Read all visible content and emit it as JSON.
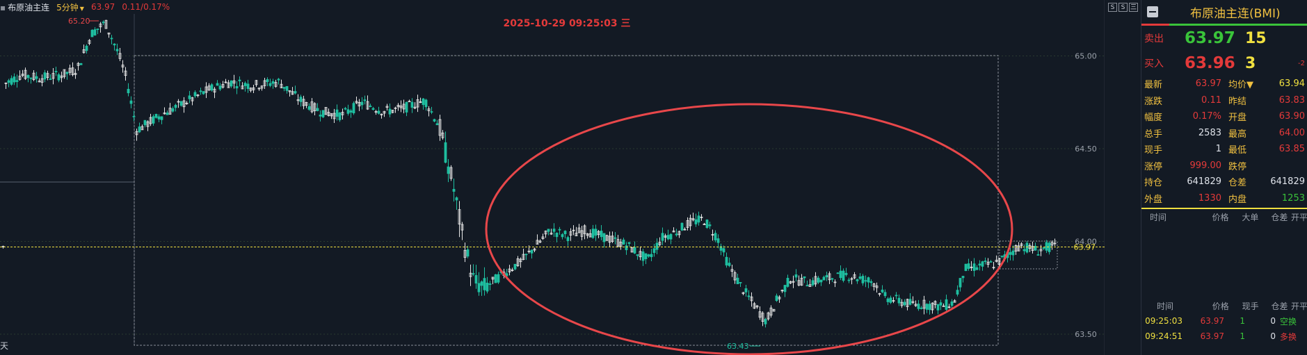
{
  "header": {
    "instrument": "布原油主连",
    "period": "5分钟",
    "price": "63.97",
    "change": "0.11/0.17%"
  },
  "chart": {
    "datetime_label": "2025-10-29 09:25:03 三",
    "y_ticks": [
      "65.00",
      "64.50",
      "64.00",
      "63.50"
    ],
    "current_price_label": "63.97",
    "high_label": "65.20",
    "low_label": "63.43",
    "left_label": "天",
    "colors": {
      "up": "#e8e8e8",
      "down": "#1fbfa0",
      "current_line": "#f0e040",
      "annotation": "#e8474a"
    }
  },
  "window_buttons": [
    "S",
    "S",
    "三"
  ],
  "panel": {
    "title": "布原油主连(BMI)",
    "sell": {
      "label": "卖出",
      "price": "63.97",
      "volume": "15"
    },
    "buy": {
      "label": "买入",
      "price": "63.96",
      "volume": "3",
      "diff": "-2"
    },
    "stats": [
      {
        "l1": "最新",
        "v1": "63.97",
        "c1": "red",
        "l2": "均价▼",
        "v2": "63.94",
        "c2": "yellow"
      },
      {
        "l1": "涨跌",
        "v1": "0.11",
        "c1": "red",
        "l2": "昨结",
        "v2": "63.83",
        "c2": "red"
      },
      {
        "l1": "幅度",
        "v1": "0.17%",
        "c1": "red",
        "l2": "开盘",
        "v2": "63.90",
        "c2": "red"
      },
      {
        "l1": "总手",
        "v1": "2583",
        "c1": "white",
        "l2": "最高",
        "v2": "64.00",
        "c2": "red"
      },
      {
        "l1": "现手",
        "v1": "1",
        "c1": "white",
        "l2": "最低",
        "v2": "63.85",
        "c2": "red"
      },
      {
        "l1": "涨停",
        "v1": "999.00",
        "c1": "red",
        "l2": "跌停",
        "v2": "",
        "c2": "green"
      },
      {
        "l1": "持仓",
        "v1": "641829",
        "c1": "white",
        "l2": "仓差",
        "v2": "641829",
        "c2": "white"
      },
      {
        "l1": "外盘",
        "v1": "1330",
        "c1": "red",
        "l2": "内盘",
        "v2": "1253",
        "c2": "green"
      }
    ],
    "big_table_headers": [
      "时间",
      "价格",
      "大单",
      "仓差",
      "开平"
    ],
    "tick_table_headers": [
      "时间",
      "价格",
      "现手",
      "仓差",
      "开平"
    ],
    "ticks": [
      {
        "time": "09:25:03",
        "price": "63.97",
        "vol": "1",
        "oi": "0",
        "type": "空换"
      },
      {
        "time": "09:24:51",
        "price": "63.97",
        "vol": "1",
        "oi": "0",
        "type": "多换"
      }
    ]
  }
}
